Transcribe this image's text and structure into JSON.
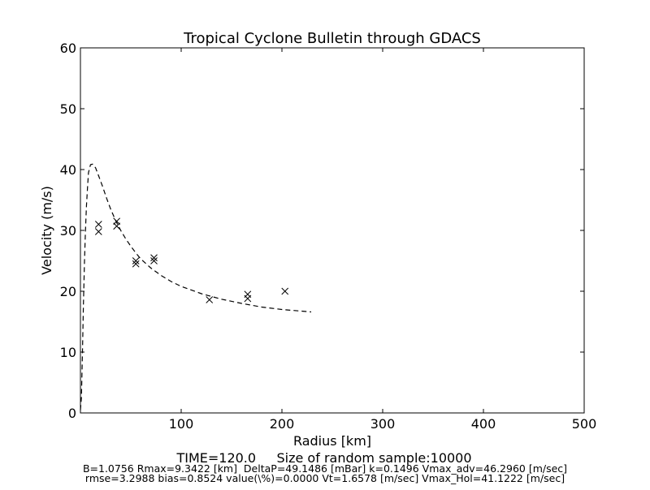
{
  "chart_data": {
    "type": "scatter",
    "title": "Tropical Cyclone Bulletin through GDACS",
    "xlabel": "Radius [km]",
    "ylabel": "Velocity (m/s)",
    "xlim": [
      0,
      500
    ],
    "ylim": [
      0,
      60
    ],
    "xticks": [
      "100",
      "200",
      "300",
      "400",
      "500"
    ],
    "yticks": [
      "0",
      "10",
      "20",
      "30",
      "40",
      "50",
      "60"
    ],
    "grid": false,
    "series": [
      {
        "marker": "x",
        "color": "#000000",
        "points": [
          [
            18,
            31.0
          ],
          [
            18,
            29.8
          ],
          [
            36,
            31.5
          ],
          [
            36,
            30.7
          ],
          [
            55,
            25.0
          ],
          [
            55,
            24.5
          ],
          [
            73,
            25.5
          ],
          [
            73,
            25.0
          ],
          [
            128,
            18.6
          ],
          [
            166,
            19.5
          ],
          [
            166,
            18.8
          ],
          [
            203,
            20.0
          ]
        ]
      },
      {
        "line": "dashed",
        "color": "#000000",
        "points": [
          [
            0,
            0.5
          ],
          [
            1,
            2.5
          ],
          [
            2,
            10
          ],
          [
            3,
            18
          ],
          [
            4,
            25
          ],
          [
            5,
            30
          ],
          [
            6,
            34
          ],
          [
            7,
            37
          ],
          [
            8,
            39.5
          ],
          [
            10,
            40.8
          ],
          [
            12,
            40.9
          ],
          [
            15,
            40.3
          ],
          [
            18,
            39.0
          ],
          [
            22,
            37.2
          ],
          [
            26,
            35.3
          ],
          [
            30,
            33.5
          ],
          [
            35,
            31.6
          ],
          [
            40,
            30.0
          ],
          [
            45,
            28.6
          ],
          [
            50,
            27.4
          ],
          [
            55,
            26.3
          ],
          [
            60,
            25.3
          ],
          [
            70,
            23.8
          ],
          [
            80,
            22.6
          ],
          [
            90,
            21.6
          ],
          [
            100,
            20.8
          ],
          [
            120,
            19.6
          ],
          [
            140,
            18.7
          ],
          [
            160,
            18.0
          ],
          [
            180,
            17.4
          ],
          [
            200,
            17.0
          ],
          [
            229,
            16.6
          ]
        ]
      }
    ]
  },
  "footer": {
    "line1": "TIME=120.0     Size of random sample:10000",
    "line2": "B=1.0756 Rmax=9.3422 [km]  DeltaP=49.1486 [mBar] k=0.1496 Vmax_adv=46.2960 [m/sec]",
    "line3": "rmse=3.2988 bias=0.8524 value(\\%)=0.0000 Vt=1.6578 [m/sec] Vmax_Hol=41.1222 [m/sec]"
  }
}
